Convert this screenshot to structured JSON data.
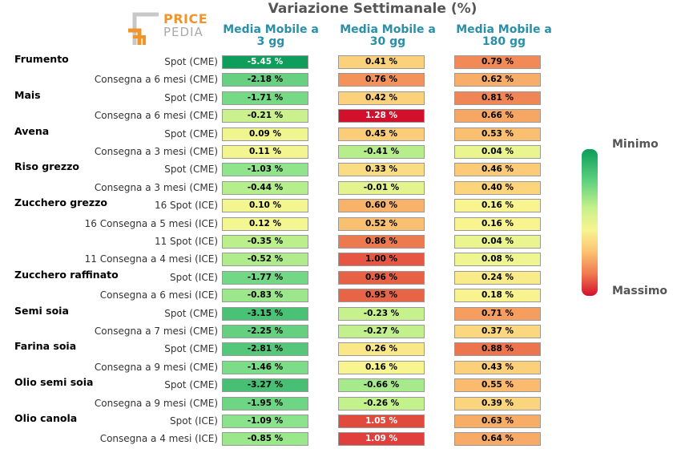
{
  "logo": {
    "line1": "PRICE",
    "line2": "PEDIA"
  },
  "title": "Variazione Settimanale (%)",
  "columns": [
    "Media Mobile a 3 gg",
    "Media Mobile a 30 gg",
    "Media Mobile a 180 gg"
  ],
  "legend": {
    "min": "Minimo",
    "max": "Massimo"
  },
  "chart_data": {
    "type": "table",
    "title": "Variazione Settimanale (%)",
    "columns": [
      "Media Mobile a 3 gg",
      "Media Mobile a 30 gg",
      "Media Mobile a 180 gg"
    ],
    "rows": [
      {
        "group": "Frumento",
        "label": "Spot (CME)",
        "values": [
          -5.45,
          0.41,
          0.79
        ]
      },
      {
        "group": "",
        "label": "Consegna a 6 mesi (CME)",
        "values": [
          -2.18,
          0.76,
          0.62
        ]
      },
      {
        "group": "Mais",
        "label": "Spot (CME)",
        "values": [
          -1.71,
          0.42,
          0.81
        ]
      },
      {
        "group": "",
        "label": "Consegna a 6 mesi (CME)",
        "values": [
          -0.21,
          1.28,
          0.66
        ]
      },
      {
        "group": "Avena",
        "label": "Spot (CME)",
        "values": [
          0.09,
          0.45,
          0.53
        ]
      },
      {
        "group": "",
        "label": "Consegna a 3 mesi (CME)",
        "values": [
          0.11,
          -0.41,
          0.04
        ]
      },
      {
        "group": "Riso grezzo",
        "label": "Spot (CME)",
        "values": [
          -1.03,
          0.33,
          0.46
        ]
      },
      {
        "group": "",
        "label": "Consegna a 3 mesi (CME)",
        "values": [
          -0.44,
          -0.01,
          0.4
        ]
      },
      {
        "group": "Zucchero grezzo",
        "label": "16 Spot (ICE)",
        "values": [
          0.1,
          0.6,
          0.16
        ]
      },
      {
        "group": "",
        "label": "16 Consegna a 5 mesi (ICE)",
        "values": [
          0.12,
          0.52,
          0.16
        ]
      },
      {
        "group": "",
        "label": "11 Spot (ICE)",
        "values": [
          -0.35,
          0.86,
          0.04
        ]
      },
      {
        "group": "",
        "label": "11 Consegna a 4 mesi (ICE)",
        "values": [
          -0.52,
          1.0,
          0.08
        ]
      },
      {
        "group": "Zucchero raffinato",
        "label": "Spot (ICE)",
        "values": [
          -1.77,
          0.96,
          0.24
        ]
      },
      {
        "group": "",
        "label": "Consegna a 6 mesi (ICE)",
        "values": [
          -0.83,
          0.95,
          0.18
        ]
      },
      {
        "group": "Semi soia",
        "label": "Spot (CME)",
        "values": [
          -3.15,
          -0.23,
          0.71
        ]
      },
      {
        "group": "",
        "label": "Consegna a 7 mesi (CME)",
        "values": [
          -2.25,
          -0.27,
          0.37
        ]
      },
      {
        "group": "Farina soia",
        "label": "Spot (CME)",
        "values": [
          -2.81,
          0.26,
          0.88
        ]
      },
      {
        "group": "",
        "label": "Consegna a 9 mesi (CME)",
        "values": [
          -1.46,
          0.16,
          0.43
        ]
      },
      {
        "group": "Olio semi soia",
        "label": "Spot (CME)",
        "values": [
          -3.27,
          -0.66,
          0.55
        ]
      },
      {
        "group": "",
        "label": "Consegna a 9 mesi (CME)",
        "values": [
          -1.95,
          -0.26,
          0.39
        ]
      },
      {
        "group": "Olio canola",
        "label": "Spot (ICE)",
        "values": [
          -1.09,
          1.05,
          0.63
        ]
      },
      {
        "group": "",
        "label": "Consegna a 4 mesi (ICE)",
        "values": [
          -0.85,
          1.09,
          0.64
        ]
      }
    ],
    "color_scale": {
      "low": "#0e9d5b",
      "mid": "#f7f590",
      "high": "#d2102b"
    },
    "legend_placement": "right"
  }
}
